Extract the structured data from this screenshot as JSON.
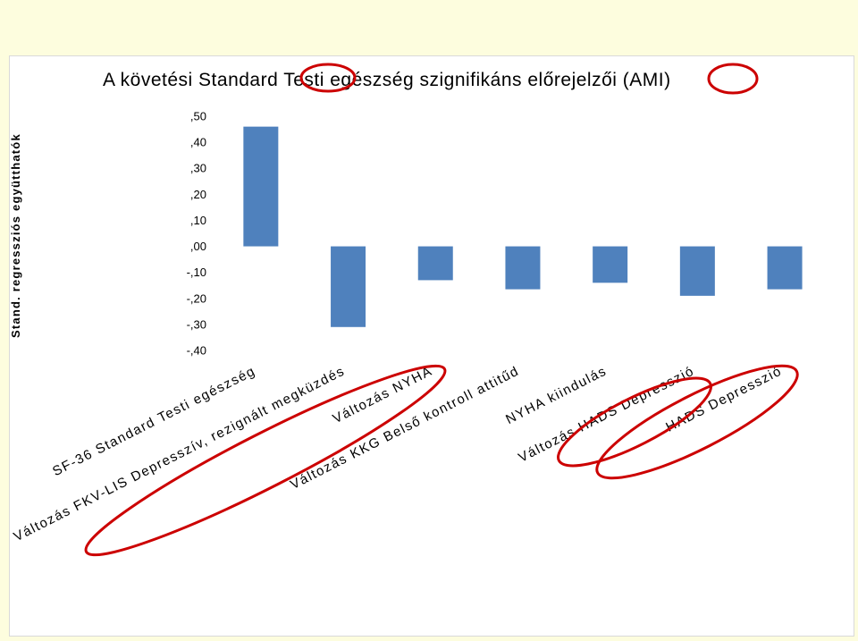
{
  "chart_data": {
    "type": "bar",
    "title": "A követési Standard Testi egészség szignifikáns előrejelzői (AMI)",
    "ylabel": "Stand. regressziós együtthatók",
    "xlabel": "",
    "ylim": [
      -0.4,
      0.5
    ],
    "yticks": [
      ",50",
      ",40",
      ",30",
      ",20",
      ",10",
      ",00",
      "-,10",
      "-,20",
      "-,30",
      "-,40"
    ],
    "categories": [
      "SF-36 Standard Testi egészség",
      "Változás FKV-LIS Depresszív, rezignált megküzdés",
      "Változás NYHA",
      "Változás KKG Belső kontroll attitűd",
      "NYHA kiindulás",
      "Változás HADS Depresszió",
      "HADS Depresszió"
    ],
    "values": [
      0.46,
      -0.31,
      -0.13,
      -0.165,
      -0.14,
      -0.19,
      -0.165
    ],
    "grid": false,
    "legend": "none",
    "bar_color": "#4f81bd",
    "highlight_color": "#cc0000"
  }
}
